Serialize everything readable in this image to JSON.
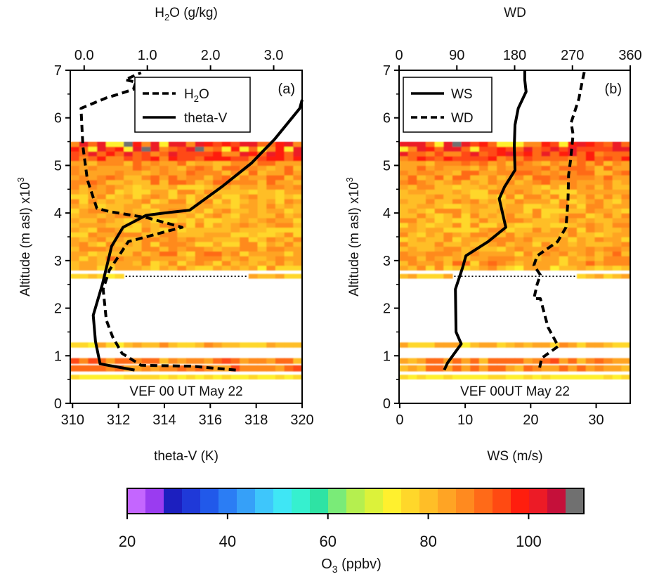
{
  "colorbar": {
    "label_main": "O",
    "label_sub": "3",
    "label_unit": " (ppbv)",
    "ticks": [
      "20",
      "40",
      "60",
      "80",
      "100"
    ],
    "tick_values": [
      20,
      40,
      60,
      80,
      100
    ],
    "range": [
      20,
      111
    ],
    "colors": [
      "#c466ff",
      "#9a3cf0",
      "#1c1fbf",
      "#1f39d8",
      "#2159ea",
      "#2b7df4",
      "#36a0f8",
      "#3ec6fb",
      "#3fe6f5",
      "#36f0cf",
      "#2ee3a4",
      "#7aeb78",
      "#b5ef4f",
      "#dcf23a",
      "#fff02e",
      "#ffd72a",
      "#ffbe27",
      "#ffa424",
      "#ff8a1f",
      "#ff6a18",
      "#ff4a12",
      "#ff1e0e",
      "#ec1b26",
      "#c5103a",
      "#707070"
    ]
  },
  "chart_data": [
    {
      "panel_label": "(a)",
      "type": "line",
      "annotation": "VEF 00 UT May 22",
      "xlabel": "theta-V (K)",
      "xlim": [
        309.9,
        320
      ],
      "xticks": [
        "310",
        "312",
        "314",
        "316",
        "318",
        "320"
      ],
      "xtick_values": [
        310,
        312,
        314,
        316,
        318,
        320
      ],
      "x2label_main": "H",
      "x2label_sub": "2",
      "x2label_rest": "O (g/kg)",
      "x2lim": [
        -0.22,
        3.45
      ],
      "x2ticks": [
        "0.0",
        "1.0",
        "2.0",
        "3.0"
      ],
      "x2tick_values": [
        0,
        1,
        2,
        3
      ],
      "ylabel_main": "Altitude (m asl) x10",
      "ylabel_sup": "3",
      "ylim": [
        0,
        7
      ],
      "yticks": [
        "0",
        "1",
        "2",
        "3",
        "4",
        "5",
        "6",
        "7"
      ],
      "ytick_values": [
        0,
        1,
        2,
        3,
        4,
        5,
        6,
        7
      ],
      "legend": [
        "H2O",
        "theta-V"
      ],
      "legend_position": "top-right",
      "series": [
        {
          "name": "theta-V",
          "axis": "bottom",
          "style": "solid",
          "points": [
            [
              312.7,
              0.7
            ],
            [
              311.2,
              0.83
            ],
            [
              311.0,
              1.3
            ],
            [
              310.9,
              1.85
            ],
            [
              311.3,
              2.5
            ],
            [
              311.5,
              2.9
            ],
            [
              311.7,
              3.3
            ],
            [
              312.2,
              3.7
            ],
            [
              313.2,
              3.95
            ],
            [
              314.0,
              4.0
            ],
            [
              315.1,
              4.06
            ],
            [
              316.5,
              4.55
            ],
            [
              317.8,
              5.05
            ],
            [
              318.8,
              5.55
            ],
            [
              319.9,
              6.2
            ],
            [
              320.0,
              6.38
            ]
          ]
        },
        {
          "name": "H2O",
          "axis": "top",
          "style": "dashed",
          "points": [
            [
              2.4,
              0.7
            ],
            [
              1.7,
              0.78
            ],
            [
              0.9,
              0.8
            ],
            [
              0.6,
              1.05
            ],
            [
              0.45,
              1.4
            ],
            [
              0.35,
              1.75
            ],
            [
              0.3,
              2.4
            ],
            [
              0.4,
              2.8
            ],
            [
              0.7,
              3.4
            ],
            [
              1.55,
              3.7
            ],
            [
              1.0,
              3.9
            ],
            [
              0.4,
              4.03
            ],
            [
              0.2,
              4.1
            ],
            [
              0.05,
              4.7
            ],
            [
              -0.02,
              5.4
            ],
            [
              -0.05,
              6.2
            ],
            [
              0.35,
              6.42
            ],
            [
              0.55,
              6.5
            ],
            [
              0.78,
              6.6
            ],
            [
              0.82,
              6.75
            ],
            [
              0.65,
              6.8
            ],
            [
              0.9,
              6.95
            ]
          ]
        }
      ]
    },
    {
      "panel_label": "(b)",
      "type": "line",
      "annotation": "VEF 00UT May 22",
      "xlabel": "WS (m/s)",
      "xlim": [
        -0.1,
        35.2
      ],
      "xticks": [
        "0",
        "10",
        "20",
        "30"
      ],
      "xtick_values": [
        0,
        10,
        20,
        30
      ],
      "x2label": "WD",
      "x2lim": [
        0,
        360
      ],
      "x2ticks": [
        "0",
        "90",
        "180",
        "270",
        "360"
      ],
      "x2tick_values": [
        0,
        90,
        180,
        270,
        360
      ],
      "ylabel_main": "Altitude (m asl) x10",
      "ylabel_sup": "3",
      "ylim": [
        0,
        7
      ],
      "yticks": [
        "0",
        "1",
        "2",
        "3",
        "4",
        "5",
        "6",
        "7"
      ],
      "ytick_values": [
        0,
        1,
        2,
        3,
        4,
        5,
        6,
        7
      ],
      "legend": [
        "WS",
        "WD"
      ],
      "legend_position": "top-left",
      "series": [
        {
          "name": "WS",
          "axis": "bottom",
          "style": "solid",
          "points": [
            [
              6.8,
              0.7
            ],
            [
              7.3,
              0.85
            ],
            [
              9.4,
              1.25
            ],
            [
              8.6,
              1.5
            ],
            [
              8.5,
              2.4
            ],
            [
              9.6,
              2.85
            ],
            [
              10.1,
              3.1
            ],
            [
              13.5,
              3.4
            ],
            [
              16.2,
              3.7
            ],
            [
              15.2,
              4.3
            ],
            [
              16.0,
              4.55
            ],
            [
              17.6,
              4.9
            ],
            [
              17.5,
              5.4
            ],
            [
              17.6,
              5.85
            ],
            [
              18.1,
              6.2
            ],
            [
              19.3,
              6.55
            ],
            [
              19.1,
              6.8
            ],
            [
              19.1,
              7.0
            ]
          ]
        },
        {
          "name": "WD",
          "axis": "top",
          "style": "dashed",
          "points": [
            [
              219,
              0.75
            ],
            [
              222,
              0.95
            ],
            [
              248,
              1.2
            ],
            [
              232,
              1.6
            ],
            [
              220,
              2.2
            ],
            [
              210,
              2.2
            ],
            [
              215,
              2.5
            ],
            [
              220,
              2.7
            ],
            [
              210,
              2.9
            ],
            [
              215,
              3.1
            ],
            [
              247,
              3.4
            ],
            [
              260,
              3.7
            ],
            [
              263,
              4.25
            ],
            [
              264,
              4.8
            ],
            [
              267,
              5.1
            ],
            [
              271,
              5.65
            ],
            [
              268,
              5.9
            ],
            [
              280,
              6.4
            ],
            [
              285,
              6.75
            ],
            [
              289,
              7.0
            ]
          ]
        }
      ]
    }
  ]
}
